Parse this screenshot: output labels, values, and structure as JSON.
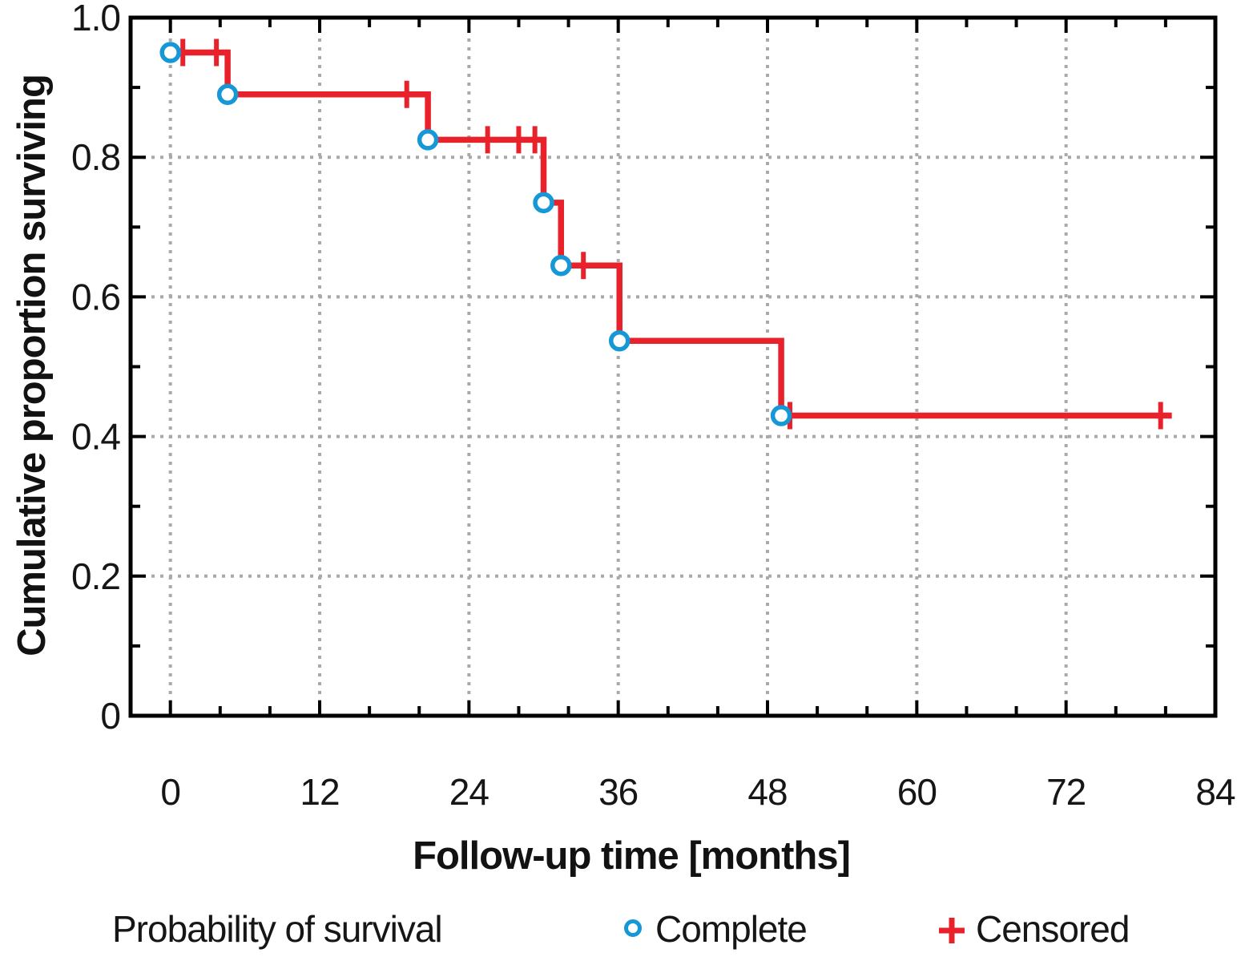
{
  "chart_data": {
    "type": "line",
    "subtype": "kaplan-meier-step",
    "title": "",
    "xlabel": "Follow-up time [months]",
    "ylabel": "Cumulative proportion surviving",
    "xlim": [
      -3.2,
      84
    ],
    "ylim": [
      0,
      1.0
    ],
    "x_ticks_major": [
      0,
      12,
      24,
      36,
      48,
      60,
      72,
      84
    ],
    "x_tick_labels": [
      "0",
      "12",
      "24",
      "36",
      "48",
      "60",
      "72",
      "84"
    ],
    "x_minor_step": 4,
    "y_ticks_major": [
      0,
      0.2,
      0.4,
      0.6,
      0.8,
      1.0
    ],
    "y_tick_labels": [
      "0",
      "0.2",
      "0.4",
      "0.6",
      "0.8",
      "1.0"
    ],
    "y_minor_step": 0.1,
    "grid": {
      "style": "dotted",
      "x_months": [
        0,
        12,
        24,
        36,
        48,
        60,
        72
      ],
      "y_levels": [
        0.2,
        0.4,
        0.6,
        0.8
      ]
    },
    "series": {
      "name": "Probability of survival",
      "step_points": [
        [
          0,
          0.95
        ],
        [
          4.6,
          0.95
        ],
        [
          4.6,
          0.89
        ],
        [
          20.7,
          0.89
        ],
        [
          20.7,
          0.825
        ],
        [
          30.0,
          0.825
        ],
        [
          30.0,
          0.735
        ],
        [
          31.4,
          0.735
        ],
        [
          31.4,
          0.645
        ],
        [
          36.1,
          0.645
        ],
        [
          36.1,
          0.537
        ],
        [
          49.1,
          0.537
        ],
        [
          49.1,
          0.43
        ],
        [
          80.5,
          0.43
        ]
      ],
      "complete_markers": [
        [
          0,
          0.95
        ],
        [
          4.6,
          0.89
        ],
        [
          20.7,
          0.825
        ],
        [
          30.0,
          0.735
        ],
        [
          31.4,
          0.645
        ],
        [
          36.1,
          0.537
        ],
        [
          49.1,
          0.43
        ]
      ],
      "censored_markers": [
        [
          1.0,
          0.95
        ],
        [
          3.7,
          0.95
        ],
        [
          19.0,
          0.89
        ],
        [
          25.5,
          0.825
        ],
        [
          28.0,
          0.825
        ],
        [
          29.3,
          0.825
        ],
        [
          33.2,
          0.645
        ],
        [
          49.8,
          0.43
        ],
        [
          79.6,
          0.43
        ]
      ]
    },
    "legend": {
      "position": "bottom",
      "series_label": "Probability of survival",
      "complete_label": "Complete",
      "censored_label": "Censored"
    },
    "colors": {
      "line": "#e8212b",
      "censored": "#e8212b",
      "complete_stroke": "#1697d6",
      "complete_fill": "#ffffff",
      "grid": "#a9a9a9",
      "axis": "#000000",
      "text": "#161616"
    }
  }
}
